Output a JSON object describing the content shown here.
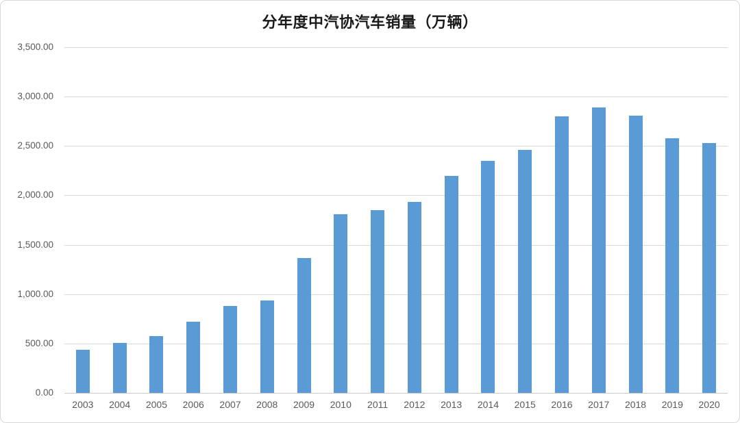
{
  "window": {
    "background": "#ffffff",
    "border_color": "#d8d8d8"
  },
  "chart_data": {
    "type": "bar",
    "title": "分年度中汽协汽车销量（万辆）",
    "xlabel": "",
    "ylabel": "",
    "categories": [
      "2003",
      "2004",
      "2005",
      "2006",
      "2007",
      "2008",
      "2009",
      "2010",
      "2011",
      "2012",
      "2013",
      "2014",
      "2015",
      "2016",
      "2017",
      "2018",
      "2019",
      "2020"
    ],
    "values": [
      439.08,
      507.05,
      575.82,
      721.6,
      879.15,
      938.05,
      1364.48,
      1806.19,
      1850.51,
      1930.64,
      2198.41,
      2349.19,
      2459.76,
      2802.82,
      2887.89,
      2808.06,
      2576.87,
      2531.1
    ],
    "ylim": [
      0,
      3500
    ],
    "ytick_step": 500,
    "ytick_labels": [
      "0.00",
      "500.00",
      "1,000.00",
      "1,500.00",
      "2,000.00",
      "2,500.00",
      "3,000.00",
      "3,500.00"
    ],
    "grid": true,
    "legend": "none",
    "colors": {
      "bar": "#5b9bd5",
      "gridline": "#d9d9d9",
      "axis_line": "#c9c9c9",
      "tick_label": "#595959",
      "title": "#1a1a1a"
    }
  }
}
